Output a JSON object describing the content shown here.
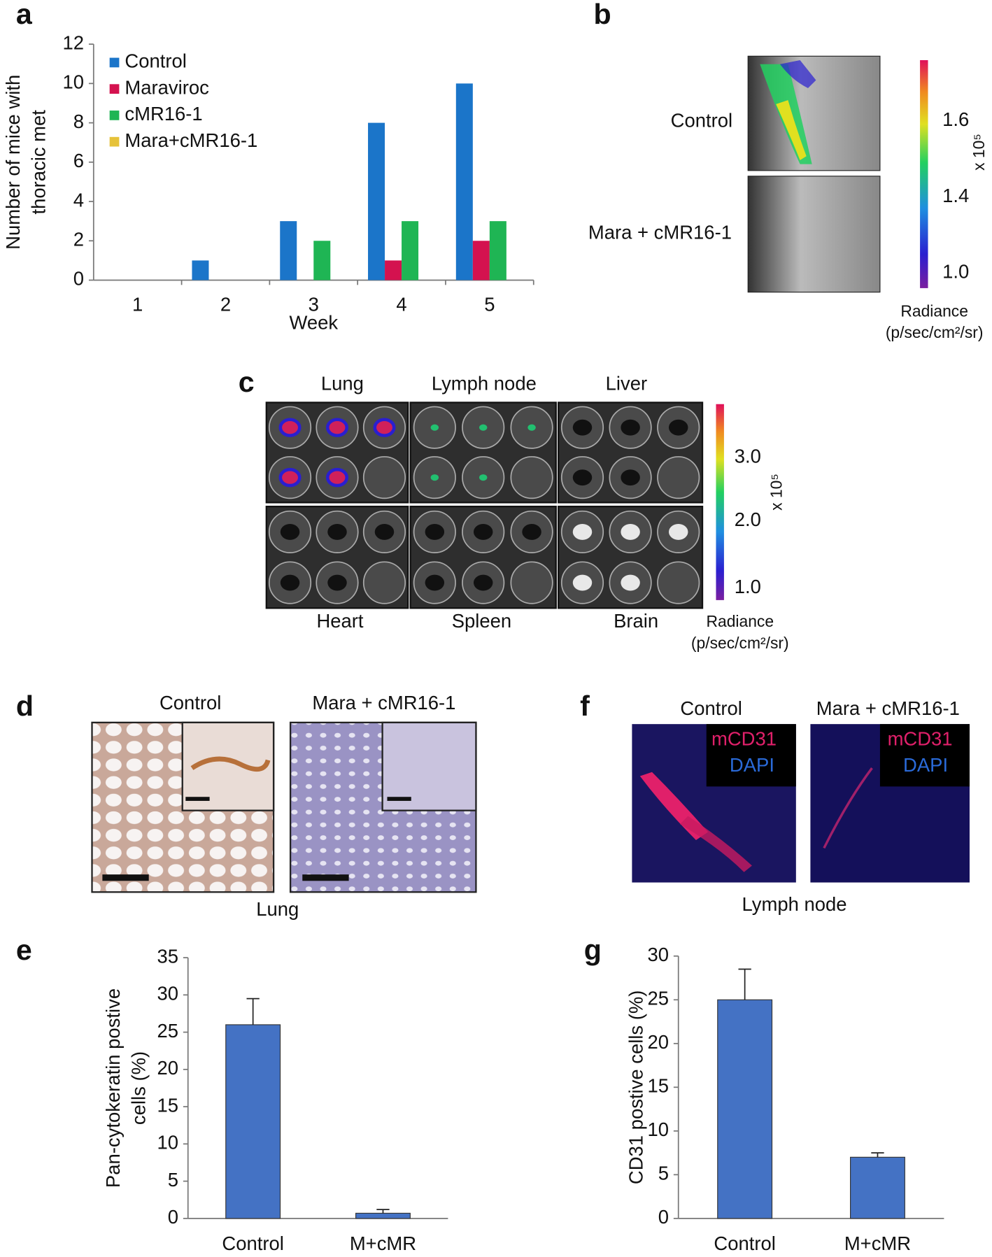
{
  "chart_data": [
    {
      "type": "bar",
      "label": "a",
      "ylabel": [
        "Number of mice with",
        "thoracic met"
      ],
      "xlabel": "Week",
      "categories": [
        "1",
        "2",
        "3",
        "4",
        "5"
      ],
      "series": [
        {
          "name": "Control",
          "color": "#1b75c9",
          "values": [
            0,
            1,
            3,
            8,
            10
          ]
        },
        {
          "name": "Maraviroc",
          "color": "#d4124f",
          "values": [
            0,
            0,
            0,
            1,
            2
          ]
        },
        {
          "name": "cMR16-1",
          "color": "#1fb554",
          "values": [
            0,
            0,
            2,
            3,
            3
          ]
        },
        {
          "name": "Mara+cMR16-1",
          "color": "#e6c23a",
          "values": [
            0,
            0,
            0,
            0,
            0
          ]
        }
      ],
      "ylim": [
        0,
        12
      ],
      "yticks": [
        0,
        2,
        4,
        6,
        8,
        10,
        12
      ]
    },
    {
      "type": "bar",
      "label": "e",
      "ylabel": [
        "Pan-cytokeratin postive",
        "cells (%)"
      ],
      "categories": [
        "Control",
        "M+cMR"
      ],
      "values": [
        26,
        0.7
      ],
      "errors": [
        3.5,
        0.5
      ],
      "color": "#4472c4",
      "ylim": [
        0,
        35
      ],
      "yticks": [
        0,
        5,
        10,
        15,
        20,
        25,
        30,
        35
      ]
    },
    {
      "type": "bar",
      "label": "g",
      "ylabel": [
        "CD31 postive cells (%)"
      ],
      "categories": [
        "Control",
        "M+cMR"
      ],
      "values": [
        25,
        7
      ],
      "errors": [
        3.5,
        0.5
      ],
      "color": "#4472c4",
      "ylim": [
        0,
        30
      ],
      "yticks": [
        0,
        5,
        10,
        15,
        20,
        25,
        30
      ]
    }
  ],
  "panels": {
    "b": {
      "label": "b",
      "rows": [
        "Control",
        "Mara + cMR16-1"
      ],
      "colorbar_ticks": [
        "1.6",
        "1.4",
        "1.0"
      ],
      "scale": "x 10⁵",
      "unit": [
        "Radiance",
        "(p/sec/cm²/sr)"
      ]
    },
    "c": {
      "label": "c",
      "top": [
        "Lung",
        "Lymph node",
        "Liver"
      ],
      "bottom": [
        "Heart",
        "Spleen",
        "Brain"
      ],
      "colorbar_ticks": [
        "3.0",
        "2.0",
        "1.0"
      ],
      "scale": "x 10⁵",
      "unit": [
        "Radiance",
        "(p/sec/cm²/sr)"
      ]
    },
    "d": {
      "label": "d",
      "columns": [
        "Control",
        "Mara + cMR16-1"
      ],
      "caption": "Lung"
    },
    "f": {
      "label": "f",
      "columns": [
        "Control",
        "Mara + cMR16-1"
      ],
      "stains": [
        "mCD31",
        "DAPI"
      ],
      "caption": "Lymph node"
    }
  }
}
